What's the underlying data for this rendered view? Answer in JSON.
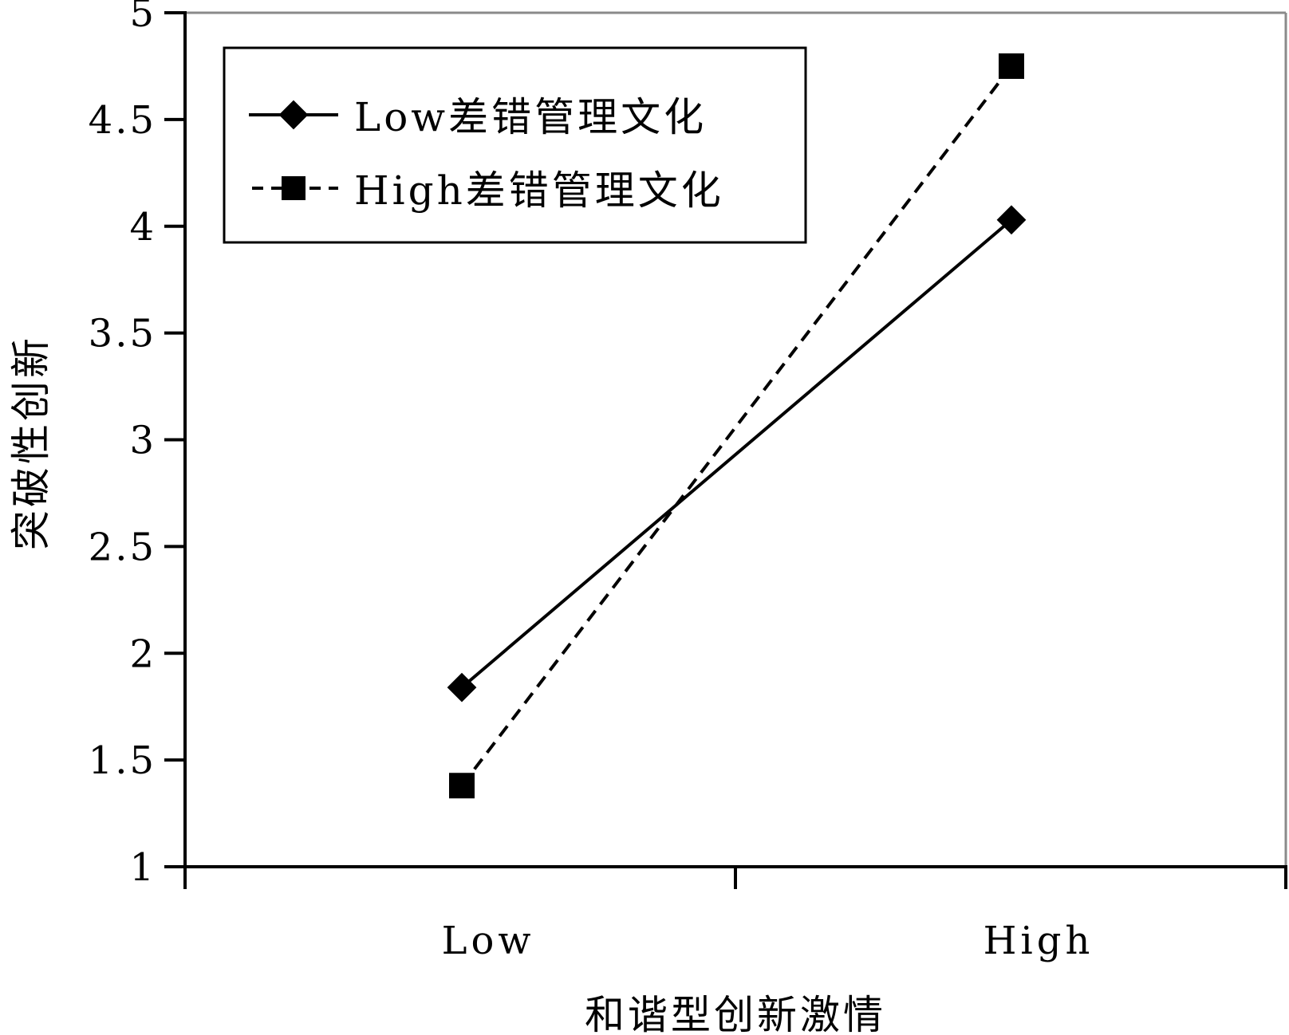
{
  "chart_data": {
    "type": "line",
    "title": "",
    "xlabel": "和谐型创新激情",
    "ylabel": "突破性创新",
    "categories": [
      "Low",
      "High"
    ],
    "ylim": [
      1,
      5
    ],
    "yticks": [
      "1",
      "1.5",
      "2",
      "2.5",
      "3",
      "3.5",
      "4",
      "4.5",
      "5"
    ],
    "grid": false,
    "legend_position": "top-left",
    "series": [
      {
        "name": "Low差错管理文化",
        "values": [
          1.84,
          4.03
        ],
        "line_style": "solid",
        "marker": "diamond",
        "color": "#000000"
      },
      {
        "name": "High差错管理文化",
        "values": [
          1.38,
          4.75
        ],
        "line_style": "dashed",
        "marker": "square",
        "color": "#000000"
      }
    ]
  }
}
